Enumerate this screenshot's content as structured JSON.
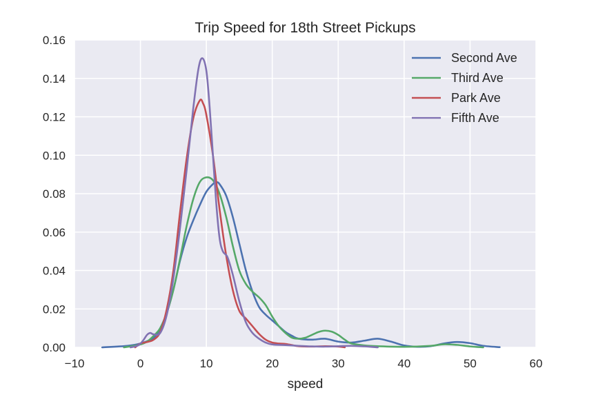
{
  "chart_data": {
    "type": "line",
    "title": "Trip Speed for 18th Street Pickups",
    "xlabel": "speed",
    "ylabel": "",
    "xlim": [
      -10,
      60
    ],
    "ylim": [
      0,
      0.16
    ],
    "xticks": [
      "−10",
      "0",
      "10",
      "20",
      "30",
      "40",
      "50",
      "60"
    ],
    "xtick_values": [
      -10,
      0,
      10,
      20,
      30,
      40,
      50,
      60
    ],
    "yticks": [
      "0.00",
      "0.02",
      "0.04",
      "0.06",
      "0.08",
      "0.10",
      "0.12",
      "0.14",
      "0.16"
    ],
    "ytick_values": [
      0,
      0.02,
      0.04,
      0.06,
      0.08,
      0.1,
      0.12,
      0.14,
      0.16
    ],
    "grid": true,
    "legend_position": "top-right",
    "series": [
      {
        "name": "Second Ave",
        "color": "#4c72b0",
        "points": [
          [
            -5.8,
            0
          ],
          [
            -2,
            0.0008
          ],
          [
            0,
            0.002
          ],
          [
            2,
            0.005
          ],
          [
            3,
            0.01
          ],
          [
            4,
            0.018
          ],
          [
            5,
            0.03
          ],
          [
            6,
            0.045
          ],
          [
            7,
            0.057
          ],
          [
            8,
            0.066
          ],
          [
            9,
            0.074
          ],
          [
            10,
            0.081
          ],
          [
            11,
            0.085
          ],
          [
            11.5,
            0.086
          ],
          [
            12,
            0.085
          ],
          [
            13,
            0.079
          ],
          [
            14,
            0.068
          ],
          [
            15,
            0.054
          ],
          [
            16,
            0.04
          ],
          [
            17,
            0.029
          ],
          [
            18,
            0.021
          ],
          [
            19,
            0.017
          ],
          [
            20,
            0.014
          ],
          [
            21,
            0.011
          ],
          [
            22,
            0.008
          ],
          [
            23,
            0.006
          ],
          [
            24,
            0.0045
          ],
          [
            26,
            0.004
          ],
          [
            28,
            0.0045
          ],
          [
            30,
            0.003
          ],
          [
            32,
            0.0025
          ],
          [
            34,
            0.0035
          ],
          [
            36,
            0.0045
          ],
          [
            38,
            0.003
          ],
          [
            40,
            0.001
          ],
          [
            42,
            0.0003
          ],
          [
            44,
            0.0006
          ],
          [
            46,
            0.002
          ],
          [
            48,
            0.0028
          ],
          [
            50,
            0.0022
          ],
          [
            52,
            0.0008
          ],
          [
            54.5,
            0.0001
          ]
        ]
      },
      {
        "name": "Third Ave",
        "color": "#55a868",
        "points": [
          [
            -2.5,
            0
          ],
          [
            -1,
            0.0008
          ],
          [
            0,
            0.0015
          ],
          [
            1,
            0.003
          ],
          [
            2,
            0.006
          ],
          [
            3,
            0.01
          ],
          [
            4,
            0.018
          ],
          [
            5,
            0.03
          ],
          [
            6,
            0.046
          ],
          [
            7,
            0.063
          ],
          [
            8,
            0.077
          ],
          [
            9,
            0.086
          ],
          [
            10,
            0.0885
          ],
          [
            11,
            0.087
          ],
          [
            12,
            0.08
          ],
          [
            13,
            0.068
          ],
          [
            14,
            0.053
          ],
          [
            15,
            0.04
          ],
          [
            16,
            0.033
          ],
          [
            17,
            0.029
          ],
          [
            18,
            0.026
          ],
          [
            19,
            0.022
          ],
          [
            20,
            0.016
          ],
          [
            21,
            0.011
          ],
          [
            22,
            0.0075
          ],
          [
            23,
            0.005
          ],
          [
            24,
            0.0045
          ],
          [
            25,
            0.005
          ],
          [
            26,
            0.0065
          ],
          [
            27,
            0.008
          ],
          [
            28,
            0.0087
          ],
          [
            29,
            0.0082
          ],
          [
            30,
            0.0065
          ],
          [
            31,
            0.004
          ],
          [
            32,
            0.002
          ],
          [
            34,
            0.001
          ],
          [
            36,
            0.0006
          ],
          [
            40,
            0.0003
          ],
          [
            44,
            0.0008
          ],
          [
            46,
            0.0016
          ],
          [
            48,
            0.0013
          ],
          [
            50,
            0.0005
          ],
          [
            52,
            0
          ]
        ]
      },
      {
        "name": "Park Ave",
        "color": "#c44e52",
        "points": [
          [
            -0.8,
            0
          ],
          [
            0,
            0.002
          ],
          [
            1,
            0.0028
          ],
          [
            2,
            0.004
          ],
          [
            3,
            0.008
          ],
          [
            4,
            0.02
          ],
          [
            5,
            0.04
          ],
          [
            6,
            0.07
          ],
          [
            7,
            0.098
          ],
          [
            8,
            0.119
          ],
          [
            9,
            0.1285
          ],
          [
            9.5,
            0.127
          ],
          [
            10,
            0.121
          ],
          [
            11,
            0.1
          ],
          [
            12,
            0.072
          ],
          [
            13,
            0.048
          ],
          [
            14,
            0.03
          ],
          [
            15,
            0.019
          ],
          [
            16,
            0.015
          ],
          [
            17,
            0.011
          ],
          [
            18,
            0.007
          ],
          [
            19,
            0.004
          ],
          [
            20,
            0.0025
          ],
          [
            21,
            0.002
          ],
          [
            22,
            0.0018
          ],
          [
            23,
            0.0012
          ],
          [
            24,
            0.0006
          ],
          [
            26,
            0.0004
          ],
          [
            28,
            0.0006
          ],
          [
            30,
            0.0004
          ],
          [
            31,
            0
          ]
        ]
      },
      {
        "name": "Fifth Ave",
        "color": "#8172b2",
        "points": [
          [
            -1.5,
            0
          ],
          [
            -0.5,
            0.0008
          ],
          [
            0,
            0.002
          ],
          [
            0.5,
            0.004
          ],
          [
            1,
            0.0065
          ],
          [
            1.5,
            0.0075
          ],
          [
            2,
            0.0068
          ],
          [
            3,
            0.0075
          ],
          [
            4,
            0.017
          ],
          [
            5,
            0.036
          ],
          [
            6,
            0.062
          ],
          [
            7,
            0.092
          ],
          [
            8,
            0.124
          ],
          [
            8.8,
            0.145
          ],
          [
            9.4,
            0.1505
          ],
          [
            10,
            0.144
          ],
          [
            10.5,
            0.125
          ],
          [
            11,
            0.1
          ],
          [
            11.5,
            0.075
          ],
          [
            12,
            0.057
          ],
          [
            12.5,
            0.05
          ],
          [
            13.2,
            0.047
          ],
          [
            14,
            0.038
          ],
          [
            15,
            0.024
          ],
          [
            16,
            0.013
          ],
          [
            17,
            0.0075
          ],
          [
            18,
            0.0045
          ],
          [
            19,
            0.0025
          ],
          [
            20,
            0.0015
          ],
          [
            22,
            0.0012
          ],
          [
            24,
            0.0008
          ],
          [
            26,
            0.0005
          ],
          [
            28,
            0.0004
          ],
          [
            30,
            0.0006
          ],
          [
            32,
            0.0008
          ],
          [
            34,
            0.0005
          ],
          [
            36,
            0
          ]
        ]
      }
    ]
  }
}
